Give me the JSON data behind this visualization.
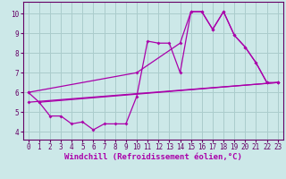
{
  "background_color": "#cce8e8",
  "grid_color": "#aacccc",
  "line_color": "#aa00aa",
  "marker": "D",
  "markersize": 2.0,
  "linewidth": 0.9,
  "xlabel": "Windchill (Refroidissement éolien,°C)",
  "xlabel_fontsize": 6.5,
  "ylim": [
    3.6,
    10.6
  ],
  "xlim": [
    -0.5,
    23.5
  ],
  "yticks": [
    4,
    5,
    6,
    7,
    8,
    9,
    10
  ],
  "xticks": [
    0,
    1,
    2,
    3,
    4,
    5,
    6,
    7,
    8,
    9,
    10,
    11,
    12,
    13,
    14,
    15,
    16,
    17,
    18,
    19,
    20,
    21,
    22,
    23
  ],
  "tick_fontsize": 5.5,
  "line1_x": [
    0,
    1,
    2,
    3,
    4,
    5,
    6,
    7,
    8,
    9,
    10,
    11,
    12,
    13,
    14,
    15,
    16,
    17,
    18,
    19,
    20,
    21,
    22
  ],
  "line1_y": [
    6.0,
    5.5,
    4.8,
    4.8,
    4.4,
    4.5,
    4.1,
    4.4,
    4.4,
    4.4,
    5.8,
    8.6,
    8.5,
    8.5,
    7.0,
    10.1,
    10.1,
    9.2,
    10.1,
    8.9,
    8.3,
    7.5,
    6.5
  ],
  "line2_x": [
    1,
    23
  ],
  "line2_y": [
    5.5,
    6.5
  ],
  "line3_x": [
    0,
    23
  ],
  "line3_y": [
    5.5,
    6.5
  ],
  "line4_x": [
    0,
    10,
    14,
    15,
    16,
    17,
    18,
    19,
    20,
    21,
    22,
    23
  ],
  "line4_y": [
    6.0,
    7.0,
    8.5,
    10.1,
    10.1,
    9.2,
    10.1,
    8.9,
    8.3,
    7.5,
    6.5,
    6.5
  ],
  "spine_color": "#660066",
  "tick_color": "#660066"
}
